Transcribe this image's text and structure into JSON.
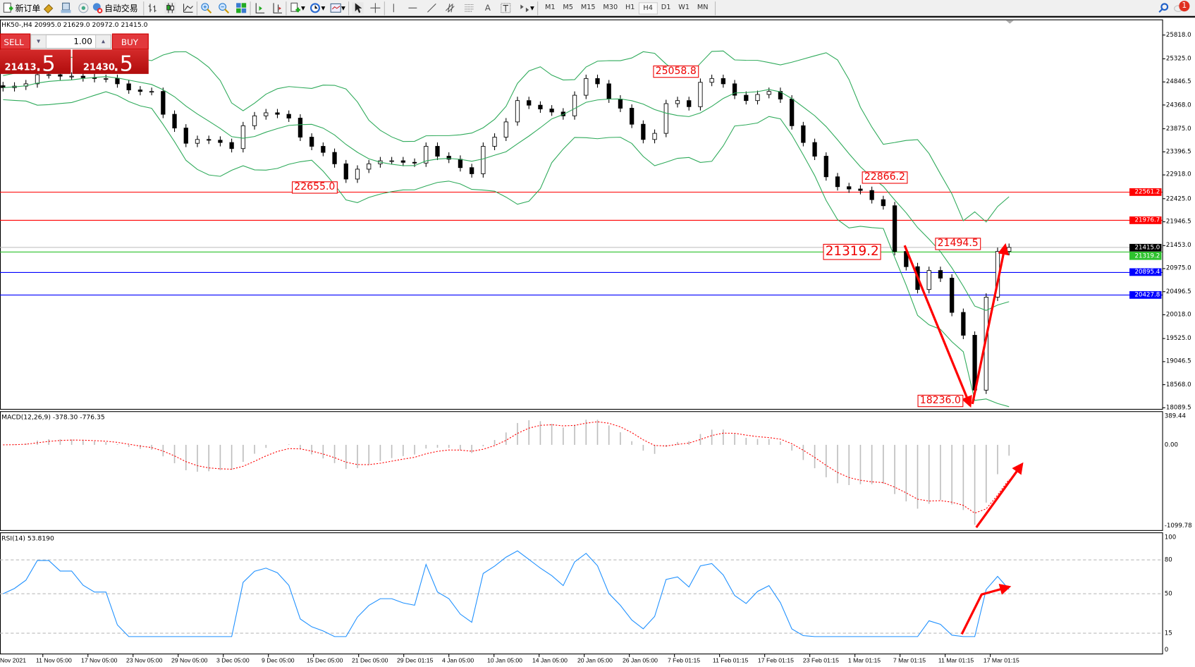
{
  "toolbar": {
    "new_order_label": "新订单",
    "auto_trading_label": "自动交易",
    "timeframes": [
      "M1",
      "M5",
      "M15",
      "M30",
      "H1",
      "H4",
      "D1",
      "W1",
      "MN"
    ],
    "active_timeframe": "H4",
    "notification_count": "1"
  },
  "chart_header": "HK50-,H4  20995.0 21629.0 20972.0 21415.0",
  "trade_panel": {
    "sell_label": "SELL",
    "buy_label": "BUY",
    "lot_value": "1.00",
    "sell_price_main": "21413",
    "sell_price_frac": ".5",
    "buy_price_main": "21430",
    "buy_price_frac": ".5"
  },
  "colors": {
    "candle": "#000000",
    "bands": "#2eaa5a",
    "macd_hist": "#bdbdbd",
    "macd_signal": "#ff0000",
    "rsi": "#1e90ff",
    "annotation": "#ff0000"
  },
  "chart_data": [
    {
      "type": "candlestick",
      "symbol": "HK50-",
      "timeframe": "H4",
      "ylim": [
        18089.5,
        25818.0
      ],
      "y_ticks": [
        "25818.0",
        "25325.0",
        "24846.5",
        "24368.0",
        "23875.0",
        "23396.5",
        "22918.0",
        "22425.0",
        "21946.5",
        "21453.0",
        "20975.0",
        "20496.5",
        "20018.0",
        "19525.0",
        "19046.5",
        "18568.0",
        "18089.5"
      ],
      "x_ticks": [
        "Nov 2021",
        "11 Nov 05:00",
        "17 Nov 05:00",
        "23 Nov 05:00",
        "29 Nov 05:00",
        "3 Dec 05:00",
        "9 Dec 05:00",
        "15 Dec 05:00",
        "21 Dec 05:00",
        "29 Dec 01:15",
        "4 Jan 05:00",
        "10 Jan 05:00",
        "14 Jan 05:00",
        "20 Jan 05:00",
        "26 Jan 05:00",
        "7 Feb 01:15",
        "11 Feb 01:15",
        "17 Feb 01:15",
        "23 Feb 01:15",
        "1 Mar 01:15",
        "7 Mar 01:15",
        "11 Mar 01:15",
        "17 Mar 01:15"
      ],
      "closes": [
        24728,
        24759,
        24807,
        24996,
        24996,
        24965,
        24965,
        24933,
        24917,
        24917,
        24807,
        24680,
        24649,
        24649,
        24175,
        23890,
        23574,
        23653,
        23638,
        23590,
        23464,
        23938,
        24143,
        24206,
        24175,
        24096,
        23701,
        23511,
        23385,
        23148,
        22832,
        23037,
        23148,
        23211,
        23211,
        23179,
        23164,
        23511,
        23306,
        23243,
        23069,
        22942,
        23511,
        23701,
        24017,
        24459,
        24364,
        24285,
        24222,
        24143,
        24570,
        24917,
        24807,
        24491,
        24301,
        23969,
        23653,
        23780,
        24396,
        24459,
        24333,
        24838,
        24917,
        24807,
        24570,
        24459,
        24586,
        24649,
        24491,
        23938,
        23590,
        23306,
        22879,
        22674,
        22626,
        22595,
        22405,
        22279,
        21331,
        21015,
        20541,
        20936,
        20778,
        20067,
        19593,
        18455,
        20383,
        21331,
        21415
      ],
      "horizontal_lines": [
        {
          "price": "22561.2",
          "color": "#ff0000"
        },
        {
          "price": "21976.7",
          "color": "#ff0000"
        },
        {
          "price": "21415.0",
          "color": "#000000"
        },
        {
          "price": "21319.2",
          "color": "#2ec22e"
        },
        {
          "price": "20895.4",
          "color": "#0000ff"
        },
        {
          "price": "20427.8",
          "color": "#0000ff"
        }
      ],
      "annotations": [
        "25058.8",
        "22655.0",
        "22866.2",
        "21494.5",
        "21319.2",
        "18236.0"
      ]
    },
    {
      "type": "macd",
      "label": "MACD(12,26,9) -378.30 -776.35",
      "ylim": [
        -1099.78,
        389.44
      ],
      "y_ticks": [
        "389.44",
        "0.00",
        "-1099.78"
      ]
    },
    {
      "type": "rsi",
      "label": "RSI(14) 53.8190",
      "ylim": [
        0,
        100
      ],
      "y_ticks": [
        "100",
        "80",
        "50",
        "15",
        "0"
      ]
    }
  ]
}
